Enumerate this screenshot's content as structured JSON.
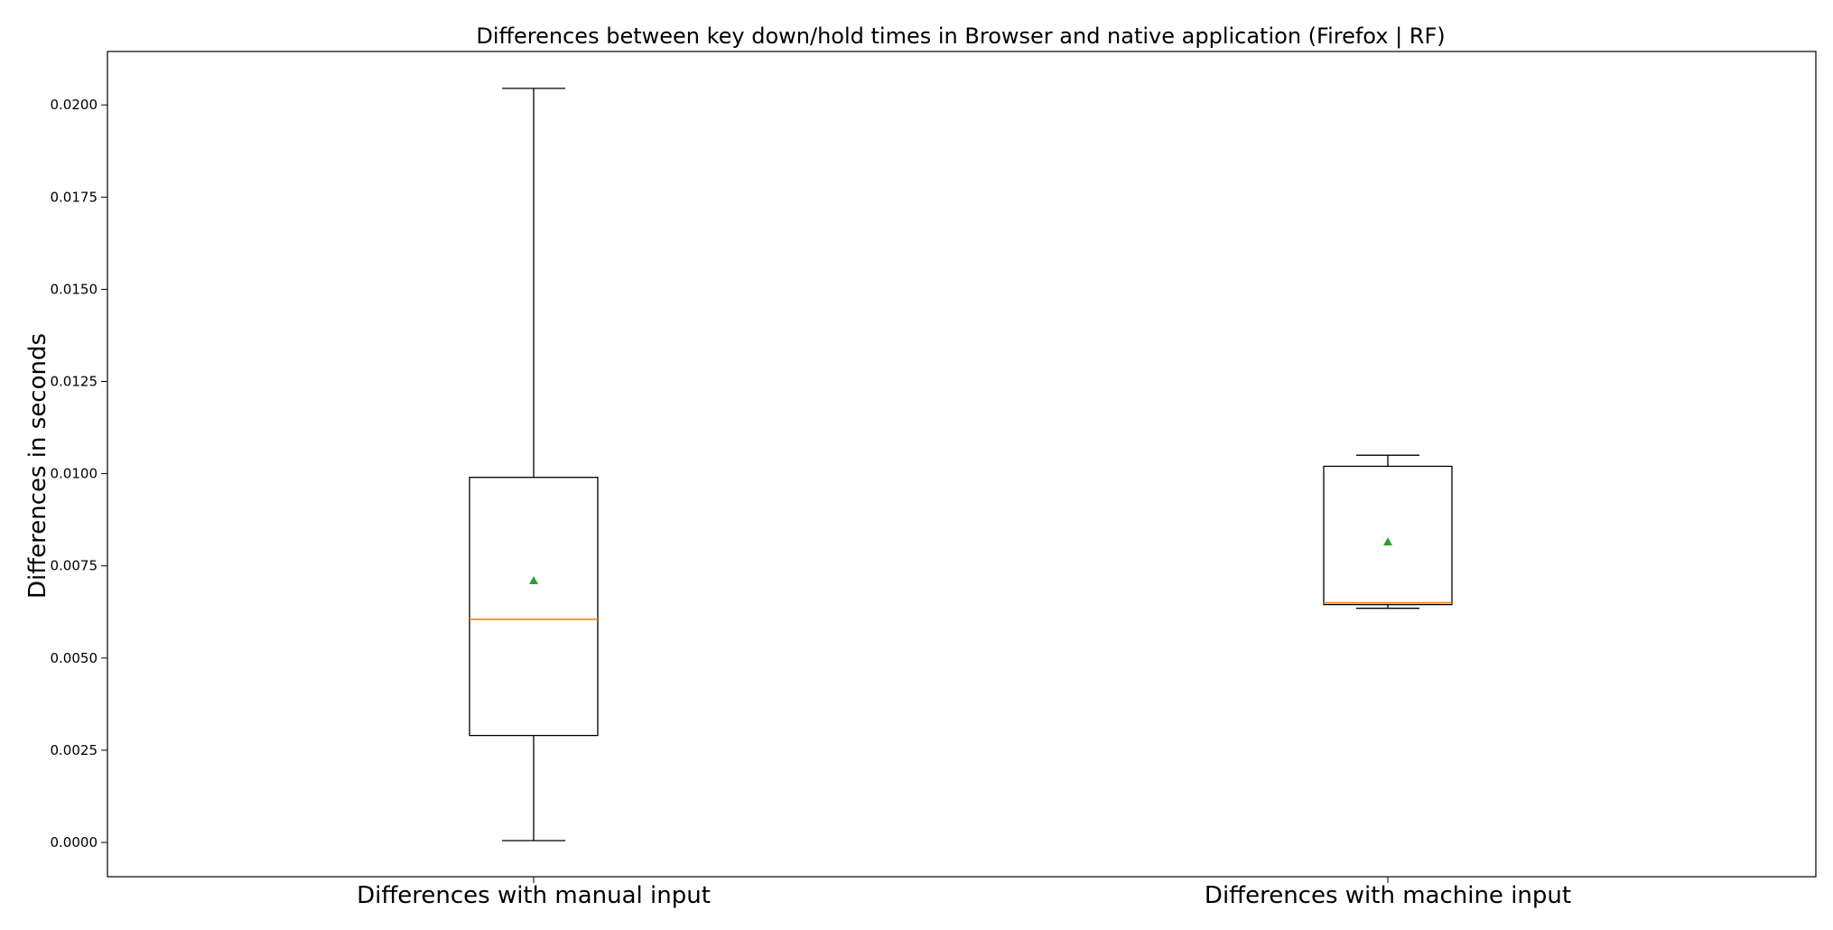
{
  "chart_data": {
    "type": "boxplot",
    "title": "Differences between key down/hold times in Browser and native application (Firefox | RF)",
    "xlabel": "",
    "ylabel": "Differences in seconds",
    "categories": [
      "Differences with manual input",
      "Differences with machine input"
    ],
    "ylim": [
      -0.00093,
      0.02145
    ],
    "yticks": [
      0.0,
      0.0025,
      0.005,
      0.0075,
      0.01,
      0.0125,
      0.015,
      0.0175,
      0.02
    ],
    "ytick_labels": [
      "0.0000",
      "0.0025",
      "0.0050",
      "0.0075",
      "0.0100",
      "0.0125",
      "0.0150",
      "0.0175",
      "0.0200"
    ],
    "grid": false,
    "boxes": [
      {
        "whisker_low": 5e-05,
        "q1": 0.0029,
        "median": 0.00605,
        "q3": 0.0099,
        "whisker_high": 0.02045,
        "mean": 0.0071
      },
      {
        "whisker_low": 0.00635,
        "q1": 0.00645,
        "median": 0.0065,
        "q3": 0.0102,
        "whisker_high": 0.0105,
        "mean": 0.00815
      }
    ],
    "colors": {
      "box": "#000000",
      "median": "#ff7f0e",
      "mean": "#2ca02c"
    }
  }
}
